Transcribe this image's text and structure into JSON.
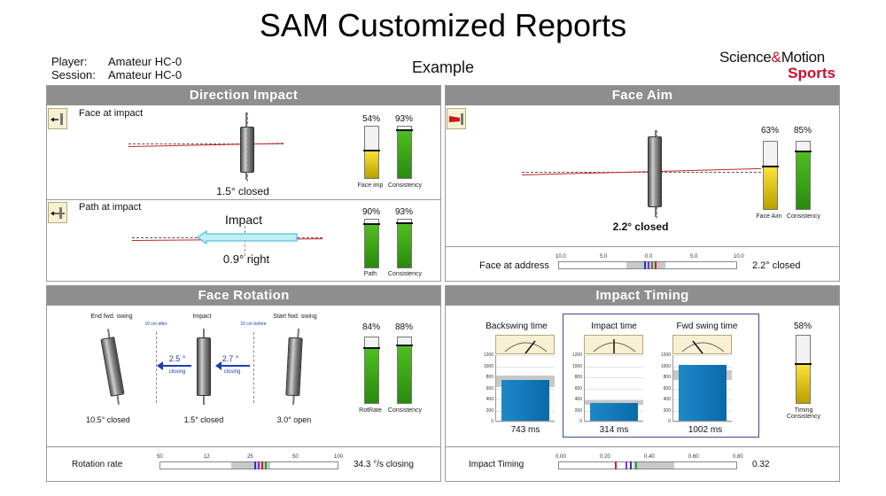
{
  "header": {
    "title": "SAM Customized Reports",
    "player_label": "Player:",
    "player_value": "Amateur HC-0",
    "session_label": "Session:",
    "session_value": "Amateur HC-0",
    "subtitle": "Example",
    "logo_science": "Science",
    "logo_amp": "&",
    "logo_motion": "Motion",
    "logo_sports": "Sports"
  },
  "direction_impact": {
    "title": "Direction Impact",
    "face": {
      "label": "Face at impact",
      "result": "1.5° closed",
      "gauges": [
        {
          "pct": "54%",
          "value": 0.54,
          "label": "Face imp",
          "color": "yellow"
        },
        {
          "pct": "93%",
          "value": 0.93,
          "label": "Consistency",
          "color": "green"
        }
      ]
    },
    "path": {
      "label": "Path at impact",
      "impact_label": "Impact",
      "result": "0.9° right",
      "gauges": [
        {
          "pct": "90%",
          "value": 0.9,
          "label": "Path",
          "color": "green"
        },
        {
          "pct": "93%",
          "value": 0.93,
          "label": "Consistency",
          "color": "green"
        }
      ]
    }
  },
  "face_aim": {
    "title": "Face Aim",
    "result": "2.2° closed",
    "gauges": [
      {
        "pct": "63%",
        "value": 0.63,
        "label": "Face Aim",
        "color": "yellow"
      },
      {
        "pct": "85%",
        "value": 0.85,
        "label": "Consistency",
        "color": "green"
      }
    ],
    "address_label": "Face at address",
    "address_value": "2.2° closed",
    "scale_ticks": [
      "10.0",
      "5.0",
      "0.0",
      "5.0",
      "10.0"
    ]
  },
  "face_rotation": {
    "title": "Face Rotation",
    "col_labels": [
      "End fwd. swing",
      "Impact",
      "Start fwd. swing"
    ],
    "marker_after": "10 cm after",
    "marker_before": "10 cm before",
    "arrow_left_value": "2.5 °",
    "arrow_left_sub": "closing",
    "arrow_right_value": "2.7 °",
    "arrow_right_sub": "closing",
    "results": [
      "10.5° closed",
      "1.5° closed",
      "3.0° open"
    ],
    "gauges": [
      {
        "pct": "84%",
        "value": 0.84,
        "label": "RotRate",
        "color": "green"
      },
      {
        "pct": "88%",
        "value": 0.88,
        "label": "Consistency",
        "color": "green"
      }
    ],
    "rate_label": "Rotation rate",
    "rate_value": "34.3 °/s closing",
    "scale_ticks": [
      "50",
      "12",
      "25",
      "50",
      "100"
    ]
  },
  "impact_timing": {
    "title": "Impact Timing",
    "charts": [
      {
        "label": "Backswing time",
        "value": "743 ms",
        "ms": 743
      },
      {
        "label": "Impact time",
        "value": "314 ms",
        "ms": 314
      },
      {
        "label": "Fwd swing time",
        "value": "1002 ms",
        "ms": 1002
      }
    ],
    "y_ticks": [
      "1200",
      "1000",
      "800",
      "600",
      "400",
      "200",
      "0"
    ],
    "gauge": {
      "pct": "58%",
      "value": 0.58,
      "label": "Timing Consistency",
      "color": "yellow"
    },
    "timing_label": "Impact Timing",
    "timing_value": "0.32",
    "scale_ticks": [
      "0.00",
      "0.20",
      "0.40",
      "0.60",
      "0.80"
    ]
  },
  "colors": {
    "panel_header": "#8e8e8e",
    "yellow_fill": "#e0c400",
    "green_fill": "#3aa618",
    "timing_bar": "#1e88c8",
    "accent_red": "#c8102e",
    "arrow_blue": "#1b3db5"
  }
}
